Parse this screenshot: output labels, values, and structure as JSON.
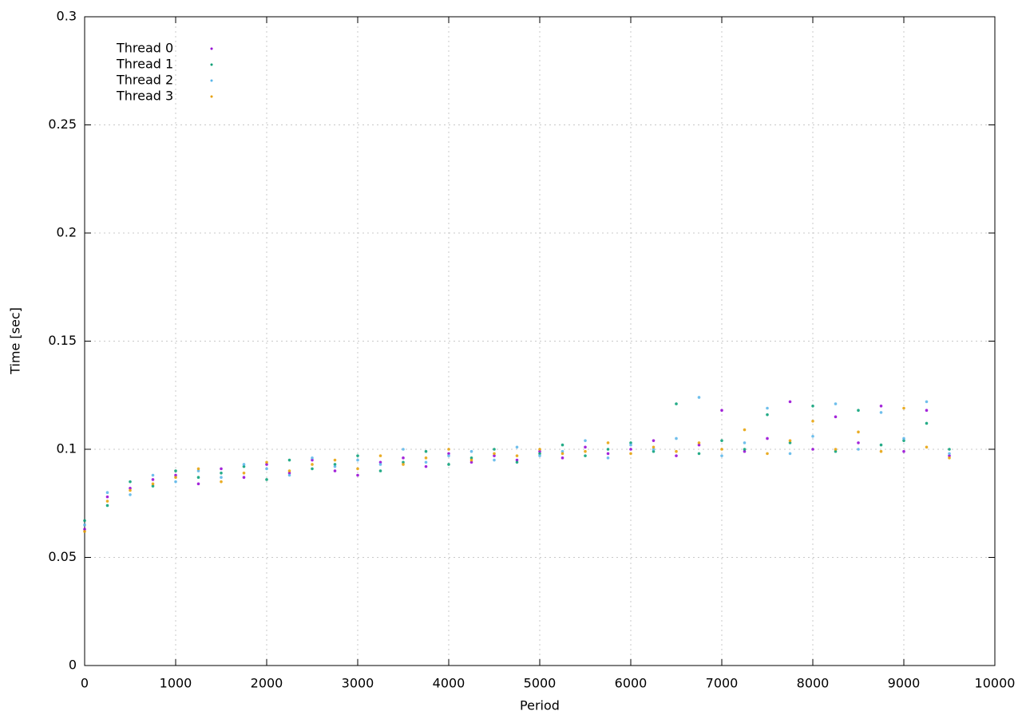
{
  "chart_data": {
    "type": "scatter",
    "x_label": "Period",
    "y_label": "Time [sec]",
    "xlim": [
      0,
      10000
    ],
    "ylim": [
      0,
      0.3
    ],
    "xticks": [
      0,
      1000,
      2000,
      3000,
      4000,
      5000,
      6000,
      7000,
      8000,
      9000,
      10000
    ],
    "yticks": [
      0,
      0.05,
      0.1,
      0.15,
      0.2,
      0.25,
      0.3
    ],
    "grid": true,
    "legend": "top-left",
    "x": [
      0,
      250,
      500,
      750,
      1000,
      1250,
      1500,
      1750,
      2000,
      2250,
      2500,
      2750,
      3000,
      3250,
      3500,
      3750,
      4000,
      4250,
      4500,
      4750,
      5000,
      5250,
      5500,
      5750,
      6000,
      6250,
      6500,
      6750,
      7000,
      7250,
      7500,
      7750,
      8000,
      8250,
      8500,
      8750,
      9000,
      9250,
      9500
    ],
    "series": [
      {
        "name": "Thread 0",
        "color": "#9400d3",
        "values": [
          0.063,
          0.078,
          0.082,
          0.086,
          0.088,
          0.084,
          0.091,
          0.087,
          0.093,
          0.089,
          0.095,
          0.09,
          0.088,
          0.094,
          0.096,
          0.092,
          0.098,
          0.094,
          0.097,
          0.095,
          0.099,
          0.096,
          0.101,
          0.098,
          0.1,
          0.104,
          0.097,
          0.102,
          0.118,
          0.099,
          0.105,
          0.122,
          0.1,
          0.115,
          0.103,
          0.12,
          0.099,
          0.118,
          0.097
        ]
      },
      {
        "name": "Thread 1",
        "color": "#009e73",
        "values": [
          0.067,
          0.074,
          0.085,
          0.083,
          0.09,
          0.087,
          0.089,
          0.092,
          0.086,
          0.095,
          0.091,
          0.093,
          0.097,
          0.09,
          0.094,
          0.099,
          0.093,
          0.096,
          0.1,
          0.094,
          0.098,
          0.102,
          0.097,
          0.1,
          0.103,
          0.099,
          0.121,
          0.098,
          0.104,
          0.1,
          0.116,
          0.103,
          0.12,
          0.099,
          0.118,
          0.102,
          0.104,
          0.112,
          0.1
        ]
      },
      {
        "name": "Thread 2",
        "color": "#56b4e9",
        "values": [
          0.065,
          0.08,
          0.079,
          0.088,
          0.085,
          0.09,
          0.087,
          0.093,
          0.091,
          0.088,
          0.096,
          0.092,
          0.095,
          0.093,
          0.1,
          0.094,
          0.097,
          0.099,
          0.095,
          0.101,
          0.097,
          0.099,
          0.104,
          0.096,
          0.102,
          0.1,
          0.105,
          0.124,
          0.097,
          0.103,
          0.119,
          0.098,
          0.106,
          0.121,
          0.1,
          0.117,
          0.105,
          0.122,
          0.098
        ]
      },
      {
        "name": "Thread 3",
        "color": "#e69f00",
        "values": [
          0.062,
          0.076,
          0.081,
          0.084,
          0.087,
          0.091,
          0.085,
          0.089,
          0.094,
          0.09,
          0.093,
          0.095,
          0.091,
          0.097,
          0.093,
          0.096,
          0.1,
          0.095,
          0.098,
          0.097,
          0.1,
          0.098,
          0.099,
          0.103,
          0.098,
          0.101,
          0.099,
          0.103,
          0.1,
          0.109,
          0.098,
          0.104,
          0.113,
          0.1,
          0.108,
          0.099,
          0.119,
          0.101,
          0.096
        ]
      }
    ]
  }
}
